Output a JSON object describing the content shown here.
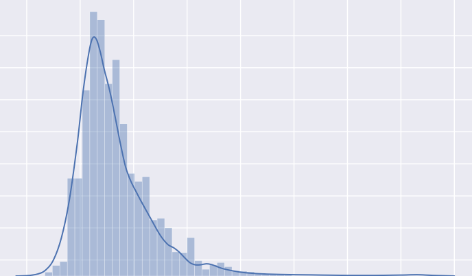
{
  "colors": {
    "background": "#eaeaf2",
    "grid": "#ffffff",
    "series": "#4c72b0"
  },
  "chart_data": {
    "type": "histogram",
    "title": "",
    "xlabel": "",
    "ylabel": "",
    "grid": true,
    "legend": "none",
    "xlim": [
      0,
      17.66
    ],
    "ylim": [
      0,
      0.825
    ],
    "x_gridlines": [
      1,
      3,
      5,
      7,
      9,
      11,
      13,
      15,
      17
    ],
    "y_gridlines": [
      0.05,
      0.15,
      0.25,
      0.35,
      0.45,
      0.55,
      0.65,
      0.75
    ],
    "bin_width": 0.28,
    "bins": [
      {
        "x0": 1.68,
        "density": 0.012
      },
      {
        "x0": 1.96,
        "density": 0.033
      },
      {
        "x0": 2.24,
        "density": 0.045
      },
      {
        "x0": 2.52,
        "density": 0.305
      },
      {
        "x0": 2.8,
        "density": 0.305
      },
      {
        "x0": 3.08,
        "density": 0.58
      },
      {
        "x0": 3.36,
        "density": 0.825
      },
      {
        "x0": 3.64,
        "density": 0.8
      },
      {
        "x0": 3.92,
        "density": 0.6
      },
      {
        "x0": 4.2,
        "density": 0.675
      },
      {
        "x0": 4.48,
        "density": 0.475
      },
      {
        "x0": 4.76,
        "density": 0.32
      },
      {
        "x0": 5.04,
        "density": 0.295
      },
      {
        "x0": 5.32,
        "density": 0.31
      },
      {
        "x0": 5.6,
        "density": 0.175
      },
      {
        "x0": 5.88,
        "density": 0.18
      },
      {
        "x0": 6.16,
        "density": 0.15
      },
      {
        "x0": 6.44,
        "density": 0.075
      },
      {
        "x0": 6.72,
        "density": 0.073
      },
      {
        "x0": 7.0,
        "density": 0.12
      },
      {
        "x0": 7.28,
        "density": 0.048
      },
      {
        "x0": 7.56,
        "density": 0.021
      },
      {
        "x0": 7.84,
        "density": 0.035
      },
      {
        "x0": 8.12,
        "density": 0.042
      },
      {
        "x0": 8.4,
        "density": 0.029
      },
      {
        "x0": 8.68,
        "density": 0.017
      },
      {
        "x0": 8.96,
        "density": 0.015
      },
      {
        "x0": 9.24,
        "density": 0.013
      },
      {
        "x0": 9.52,
        "density": 0.006
      },
      {
        "x0": 9.8,
        "density": 0.005
      },
      {
        "x0": 10.08,
        "density": 0.004
      },
      {
        "x0": 10.36,
        "density": 0.005
      },
      {
        "x0": 10.64,
        "density": 0.003
      }
    ],
    "kde": {
      "x": [
        0.6,
        1.0,
        1.4,
        1.7,
        2.0,
        2.3,
        2.6,
        2.9,
        3.1,
        3.3,
        3.45,
        3.6,
        3.75,
        3.9,
        4.1,
        4.3,
        4.5,
        4.7,
        4.9,
        5.1,
        5.3,
        5.5,
        5.7,
        5.9,
        6.1,
        6.3,
        6.5,
        6.7,
        6.9,
        7.1,
        7.3,
        7.5,
        7.7,
        7.9,
        8.1,
        8.3,
        8.6,
        9.0,
        9.5,
        10.0,
        10.5,
        11.0,
        12.0,
        13.0,
        14.0,
        15.0,
        15.6,
        16.2,
        17.0
      ],
      "y": [
        0.0,
        0.001,
        0.006,
        0.018,
        0.05,
        0.12,
        0.24,
        0.42,
        0.57,
        0.685,
        0.74,
        0.74,
        0.7,
        0.645,
        0.58,
        0.5,
        0.415,
        0.34,
        0.295,
        0.262,
        0.23,
        0.2,
        0.17,
        0.14,
        0.115,
        0.097,
        0.088,
        0.075,
        0.058,
        0.042,
        0.035,
        0.035,
        0.038,
        0.036,
        0.03,
        0.024,
        0.018,
        0.012,
        0.008,
        0.006,
        0.005,
        0.004,
        0.003,
        0.002,
        0.002,
        0.003,
        0.004,
        0.002,
        0.0
      ]
    }
  }
}
